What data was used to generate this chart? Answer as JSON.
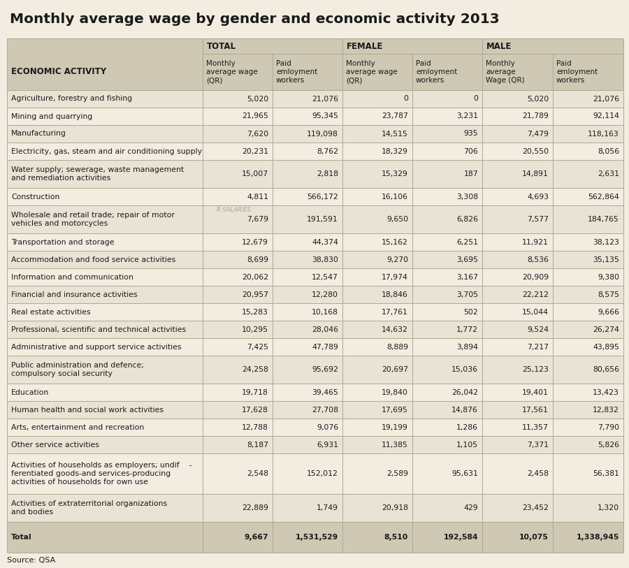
{
  "title": "Monthly average wage by gender and economic activity 2013",
  "source": "Source: QSA",
  "col_groups": [
    "TOTAL",
    "FEMALE",
    "MALE"
  ],
  "col_headers": [
    "Monthly\naverage wage\n(QR)",
    "Paid\nemloyment\nworkers",
    "Monthly\naverage wage\n(QR)",
    "Paid\nemloyment\nworkers",
    "Monthly\naverage\nWage (QR)",
    "Paid\nemloyment\nworkers"
  ],
  "row_header": "ECONOMIC ACTIVITY",
  "rows": [
    {
      "label": "Agriculture, forestry and fishing",
      "values": [
        "5,020",
        "21,076",
        "0",
        "0",
        "5,020",
        "21,076"
      ],
      "nlines": 1
    },
    {
      "label": "Mining and quarrying",
      "values": [
        "21,965",
        "95,345",
        "23,787",
        "3,231",
        "21,789",
        "92,114"
      ],
      "nlines": 1
    },
    {
      "label": "Manufacturing",
      "values": [
        "7,620",
        "119,098",
        "14,515",
        "935",
        "7,479",
        "118,163"
      ],
      "nlines": 1
    },
    {
      "label": "Electricity, gas, steam and air conditioning supply",
      "values": [
        "20,231",
        "8,762",
        "18,329",
        "706",
        "20,550",
        "8,056"
      ],
      "nlines": 1
    },
    {
      "label": "Water supply; sewerage, waste management\nand remediation activities",
      "values": [
        "15,007",
        "2,818",
        "15,329",
        "187",
        "14,891",
        "2,631"
      ],
      "nlines": 2
    },
    {
      "label": "Construction",
      "values": [
        "4,811",
        "566,172",
        "16,106",
        "3,308",
        "4,693",
        "562,864"
      ],
      "nlines": 1
    },
    {
      "label": "Wholesale and retail trade; repair of motor\nvehicles and motorcycles",
      "values": [
        "7,679",
        "191,591",
        "9,650",
        "6,826",
        "7,577",
        "184,765"
      ],
      "nlines": 2
    },
    {
      "label": "Transportation and storage",
      "values": [
        "12,679",
        "44,374",
        "15,162",
        "6,251",
        "11,921",
        "38,123"
      ],
      "nlines": 1
    },
    {
      "label": "Accommodation and food service activities",
      "values": [
        "8,699",
        "38,830",
        "9,270",
        "3,695",
        "8,536",
        "35,135"
      ],
      "nlines": 1
    },
    {
      "label": "Information and communication",
      "values": [
        "20,062",
        "12,547",
        "17,974",
        "3,167",
        "20,909",
        "9,380"
      ],
      "nlines": 1
    },
    {
      "label": "Financial and insurance activities",
      "values": [
        "20,957",
        "12,280",
        "18,846",
        "3,705",
        "22,212",
        "8,575"
      ],
      "nlines": 1
    },
    {
      "label": "Real estate activities",
      "values": [
        "15,283",
        "10,168",
        "17,761",
        "502",
        "15,044",
        "9,666"
      ],
      "nlines": 1
    },
    {
      "label": "Professional, scientific and technical activities",
      "values": [
        "10,295",
        "28,046",
        "14,632",
        "1,772",
        "9,524",
        "26,274"
      ],
      "nlines": 1
    },
    {
      "label": "Administrative and support service activities",
      "values": [
        "7,425",
        "47,789",
        "8,889",
        "3,894",
        "7,217",
        "43,895"
      ],
      "nlines": 1
    },
    {
      "label": "Public administration and defence;\ncompulsory social security",
      "values": [
        "24,258",
        "95,692",
        "20,697",
        "15,036",
        "25,123",
        "80,656"
      ],
      "nlines": 2
    },
    {
      "label": "Education",
      "values": [
        "19,718",
        "39,465",
        "19,840",
        "26,042",
        "19,401",
        "13,423"
      ],
      "nlines": 1
    },
    {
      "label": "Human health and social work activities",
      "values": [
        "17,628",
        "27,708",
        "17,695",
        "14,876",
        "17,561",
        "12,832"
      ],
      "nlines": 1
    },
    {
      "label": "Arts, entertainment and recreation",
      "values": [
        "12,788",
        "9,076",
        "19,199",
        "1,286",
        "11,357",
        "7,790"
      ],
      "nlines": 1
    },
    {
      "label": "Other service activities",
      "values": [
        "8,187",
        "6,931",
        "11,385",
        "1,105",
        "7,371",
        "5,826"
      ],
      "nlines": 1
    },
    {
      "label": "Activities of households as employers; undif    -\nferentiated goods-and services-producing\nactivities of households for own use",
      "values": [
        "2,548",
        "152,012",
        "2,589",
        "95,631",
        "2,458",
        "56,381"
      ],
      "nlines": 3
    },
    {
      "label": "Activities of extraterritorial organizations\nand bodies",
      "values": [
        "22,889",
        "1,749",
        "20,918",
        "429",
        "23,452",
        "1,320"
      ],
      "nlines": 2
    },
    {
      "label": "Total",
      "values": [
        "9,667",
        "1,531,529",
        "8,510",
        "192,584",
        "10,075",
        "1,338,945"
      ],
      "nlines": 1
    }
  ],
  "header_bg": "#cec8b4",
  "cell_bg_odd": "#e8e3d5",
  "cell_bg_even": "#f2ede0",
  "total_bg": "#cec8b4",
  "border_color": "#b0a890",
  "title_color": "#1a1a1a",
  "text_color": "#1a1a1a",
  "fig_bg": "#f2ede0",
  "watermark": "R SALARIES"
}
